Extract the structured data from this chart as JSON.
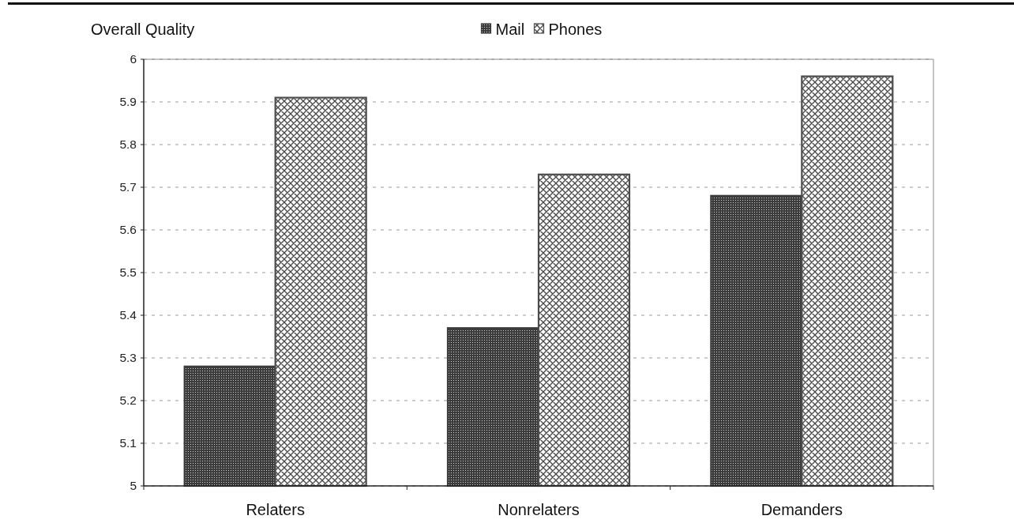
{
  "chart_data": {
    "type": "bar",
    "ylabel": "Overall Quality",
    "categories": [
      "Relaters",
      "Nonrelaters",
      "Demanders"
    ],
    "series": [
      {
        "name": "Mail",
        "color": "#3c3c3c",
        "values": [
          5.28,
          5.37,
          5.68
        ]
      },
      {
        "name": "Phones",
        "color": "#4d4d4d",
        "values": [
          5.91,
          5.73,
          5.96
        ]
      }
    ],
    "ylim": [
      5,
      6
    ],
    "yticks": [
      5,
      5.1,
      5.2,
      5.3,
      5.4,
      5.5,
      5.6,
      5.7,
      5.8,
      5.9,
      6
    ],
    "grid": "y",
    "legend": "top"
  }
}
